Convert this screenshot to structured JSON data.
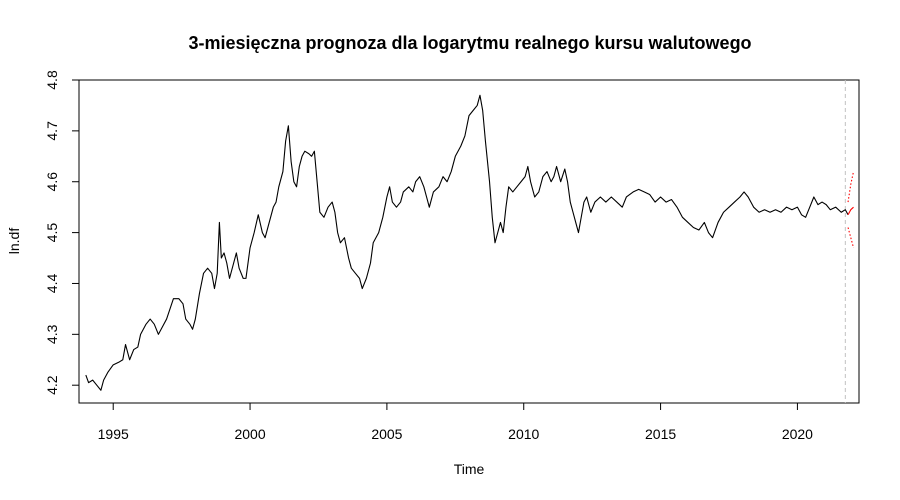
{
  "chart_data": {
    "type": "line",
    "title": "3-miesięczna prognoza dla logarytmu realnego kursu walutowego",
    "xlabel": "Time",
    "ylabel": "ln.df",
    "xlim": [
      1993.75,
      2022.25
    ],
    "ylim": [
      4.165,
      4.8
    ],
    "xticks": [
      {
        "value": 1995,
        "label": "1995"
      },
      {
        "value": 2000,
        "label": "2000"
      },
      {
        "value": 2005,
        "label": "2005"
      },
      {
        "value": 2010,
        "label": "2010"
      },
      {
        "value": 2015,
        "label": "2015"
      },
      {
        "value": 2020,
        "label": "2020"
      }
    ],
    "yticks": [
      {
        "value": 4.2,
        "label": "4.2"
      },
      {
        "value": 4.3,
        "label": "4.3"
      },
      {
        "value": 4.4,
        "label": "4.4"
      },
      {
        "value": 4.5,
        "label": "4.5"
      },
      {
        "value": 4.6,
        "label": "4.6"
      },
      {
        "value": 4.7,
        "label": "4.7"
      },
      {
        "value": 4.8,
        "label": "4.8"
      }
    ],
    "grid": false,
    "legend": "none",
    "vline": {
      "x": 2021.75,
      "color": "#c0c0c0"
    },
    "series": [
      {
        "color": "#000000",
        "points": [
          [
            1994.0,
            4.22
          ],
          [
            1994.1,
            4.205
          ],
          [
            1994.25,
            4.21
          ],
          [
            1994.4,
            4.2
          ],
          [
            1994.55,
            4.19
          ],
          [
            1994.65,
            4.21
          ],
          [
            1994.8,
            4.225
          ],
          [
            1995.0,
            4.24
          ],
          [
            1995.2,
            4.245
          ],
          [
            1995.35,
            4.25
          ],
          [
            1995.45,
            4.28
          ],
          [
            1995.6,
            4.25
          ],
          [
            1995.75,
            4.27
          ],
          [
            1995.9,
            4.275
          ],
          [
            1996.0,
            4.3
          ],
          [
            1996.2,
            4.32
          ],
          [
            1996.35,
            4.33
          ],
          [
            1996.5,
            4.32
          ],
          [
            1996.65,
            4.3
          ],
          [
            1996.8,
            4.315
          ],
          [
            1996.95,
            4.33
          ],
          [
            1997.2,
            4.37
          ],
          [
            1997.4,
            4.37
          ],
          [
            1997.55,
            4.36
          ],
          [
            1997.65,
            4.33
          ],
          [
            1997.8,
            4.32
          ],
          [
            1997.9,
            4.31
          ],
          [
            1998.0,
            4.33
          ],
          [
            1998.15,
            4.38
          ],
          [
            1998.3,
            4.42
          ],
          [
            1998.45,
            4.43
          ],
          [
            1998.6,
            4.42
          ],
          [
            1998.7,
            4.39
          ],
          [
            1998.8,
            4.42
          ],
          [
            1998.88,
            4.52
          ],
          [
            1998.95,
            4.45
          ],
          [
            1999.05,
            4.46
          ],
          [
            1999.15,
            4.44
          ],
          [
            1999.25,
            4.41
          ],
          [
            1999.4,
            4.44
          ],
          [
            1999.5,
            4.46
          ],
          [
            1999.6,
            4.43
          ],
          [
            1999.75,
            4.41
          ],
          [
            1999.85,
            4.41
          ],
          [
            2000.0,
            4.47
          ],
          [
            2000.15,
            4.5
          ],
          [
            2000.3,
            4.535
          ],
          [
            2000.45,
            4.5
          ],
          [
            2000.55,
            4.49
          ],
          [
            2000.7,
            4.52
          ],
          [
            2000.85,
            4.55
          ],
          [
            2000.95,
            4.56
          ],
          [
            2001.05,
            4.59
          ],
          [
            2001.2,
            4.62
          ],
          [
            2001.3,
            4.68
          ],
          [
            2001.4,
            4.71
          ],
          [
            2001.5,
            4.64
          ],
          [
            2001.6,
            4.6
          ],
          [
            2001.7,
            4.59
          ],
          [
            2001.8,
            4.63
          ],
          [
            2001.9,
            4.65
          ],
          [
            2002.0,
            4.66
          ],
          [
            2002.15,
            4.655
          ],
          [
            2002.25,
            4.65
          ],
          [
            2002.35,
            4.66
          ],
          [
            2002.45,
            4.6
          ],
          [
            2002.55,
            4.54
          ],
          [
            2002.7,
            4.53
          ],
          [
            2002.85,
            4.55
          ],
          [
            2003.0,
            4.56
          ],
          [
            2003.1,
            4.54
          ],
          [
            2003.2,
            4.5
          ],
          [
            2003.3,
            4.48
          ],
          [
            2003.45,
            4.49
          ],
          [
            2003.6,
            4.45
          ],
          [
            2003.7,
            4.43
          ],
          [
            2003.85,
            4.42
          ],
          [
            2004.0,
            4.41
          ],
          [
            2004.1,
            4.39
          ],
          [
            2004.25,
            4.41
          ],
          [
            2004.4,
            4.44
          ],
          [
            2004.5,
            4.48
          ],
          [
            2004.7,
            4.5
          ],
          [
            2004.85,
            4.53
          ],
          [
            2005.0,
            4.57
          ],
          [
            2005.1,
            4.59
          ],
          [
            2005.2,
            4.56
          ],
          [
            2005.35,
            4.55
          ],
          [
            2005.5,
            4.56
          ],
          [
            2005.6,
            4.58
          ],
          [
            2005.8,
            4.59
          ],
          [
            2005.95,
            4.58
          ],
          [
            2006.05,
            4.6
          ],
          [
            2006.2,
            4.61
          ],
          [
            2006.35,
            4.59
          ],
          [
            2006.45,
            4.57
          ],
          [
            2006.55,
            4.55
          ],
          [
            2006.7,
            4.58
          ],
          [
            2006.9,
            4.59
          ],
          [
            2007.05,
            4.61
          ],
          [
            2007.2,
            4.6
          ],
          [
            2007.35,
            4.62
          ],
          [
            2007.5,
            4.65
          ],
          [
            2007.7,
            4.67
          ],
          [
            2007.85,
            4.69
          ],
          [
            2008.0,
            4.73
          ],
          [
            2008.15,
            4.74
          ],
          [
            2008.3,
            4.75
          ],
          [
            2008.4,
            4.77
          ],
          [
            2008.5,
            4.74
          ],
          [
            2008.6,
            4.68
          ],
          [
            2008.75,
            4.6
          ],
          [
            2008.85,
            4.53
          ],
          [
            2008.95,
            4.48
          ],
          [
            2009.05,
            4.5
          ],
          [
            2009.15,
            4.52
          ],
          [
            2009.25,
            4.5
          ],
          [
            2009.35,
            4.55
          ],
          [
            2009.45,
            4.59
          ],
          [
            2009.6,
            4.58
          ],
          [
            2009.75,
            4.59
          ],
          [
            2009.9,
            4.6
          ],
          [
            2010.05,
            4.61
          ],
          [
            2010.15,
            4.63
          ],
          [
            2010.25,
            4.6
          ],
          [
            2010.4,
            4.57
          ],
          [
            2010.55,
            4.58
          ],
          [
            2010.7,
            4.61
          ],
          [
            2010.85,
            4.62
          ],
          [
            2011.0,
            4.6
          ],
          [
            2011.1,
            4.61
          ],
          [
            2011.2,
            4.63
          ],
          [
            2011.35,
            4.6
          ],
          [
            2011.5,
            4.625
          ],
          [
            2011.6,
            4.6
          ],
          [
            2011.7,
            4.56
          ],
          [
            2011.8,
            4.54
          ],
          [
            2011.9,
            4.52
          ],
          [
            2012.0,
            4.5
          ],
          [
            2012.1,
            4.53
          ],
          [
            2012.2,
            4.56
          ],
          [
            2012.3,
            4.57
          ],
          [
            2012.45,
            4.54
          ],
          [
            2012.6,
            4.56
          ],
          [
            2012.8,
            4.57
          ],
          [
            2013.0,
            4.56
          ],
          [
            2013.2,
            4.57
          ],
          [
            2013.4,
            4.56
          ],
          [
            2013.6,
            4.55
          ],
          [
            2013.75,
            4.57
          ],
          [
            2014.0,
            4.58
          ],
          [
            2014.2,
            4.585
          ],
          [
            2014.4,
            4.58
          ],
          [
            2014.6,
            4.575
          ],
          [
            2014.8,
            4.56
          ],
          [
            2015.0,
            4.57
          ],
          [
            2015.2,
            4.56
          ],
          [
            2015.4,
            4.565
          ],
          [
            2015.6,
            4.55
          ],
          [
            2015.8,
            4.53
          ],
          [
            2016.0,
            4.52
          ],
          [
            2016.2,
            4.51
          ],
          [
            2016.4,
            4.505
          ],
          [
            2016.6,
            4.52
          ],
          [
            2016.75,
            4.5
          ],
          [
            2016.9,
            4.49
          ],
          [
            2017.1,
            4.52
          ],
          [
            2017.3,
            4.54
          ],
          [
            2017.5,
            4.55
          ],
          [
            2017.7,
            4.56
          ],
          [
            2017.9,
            4.57
          ],
          [
            2018.05,
            4.58
          ],
          [
            2018.2,
            4.57
          ],
          [
            2018.4,
            4.55
          ],
          [
            2018.6,
            4.54
          ],
          [
            2018.8,
            4.545
          ],
          [
            2019.0,
            4.54
          ],
          [
            2019.2,
            4.545
          ],
          [
            2019.4,
            4.54
          ],
          [
            2019.6,
            4.55
          ],
          [
            2019.8,
            4.545
          ],
          [
            2020.0,
            4.55
          ],
          [
            2020.15,
            4.535
          ],
          [
            2020.3,
            4.53
          ],
          [
            2020.45,
            4.55
          ],
          [
            2020.6,
            4.57
          ],
          [
            2020.75,
            4.555
          ],
          [
            2020.9,
            4.56
          ],
          [
            2021.05,
            4.555
          ],
          [
            2021.2,
            4.545
          ],
          [
            2021.4,
            4.55
          ],
          [
            2021.6,
            4.54
          ],
          [
            2021.75,
            4.545
          ],
          [
            2021.85,
            4.535
          ]
        ]
      },
      {
        "color": "#ff0000",
        "style": "solid",
        "points": [
          [
            2021.85,
            4.535
          ],
          [
            2021.95,
            4.545
          ],
          [
            2022.05,
            4.55
          ]
        ]
      },
      {
        "color": "#ff0000",
        "style": "dotted",
        "points": [
          [
            2021.85,
            4.56
          ],
          [
            2021.95,
            4.595
          ],
          [
            2022.05,
            4.62
          ]
        ]
      },
      {
        "color": "#ff0000",
        "style": "dotted",
        "points": [
          [
            2021.85,
            4.51
          ],
          [
            2021.95,
            4.49
          ],
          [
            2022.05,
            4.47
          ]
        ]
      }
    ]
  }
}
